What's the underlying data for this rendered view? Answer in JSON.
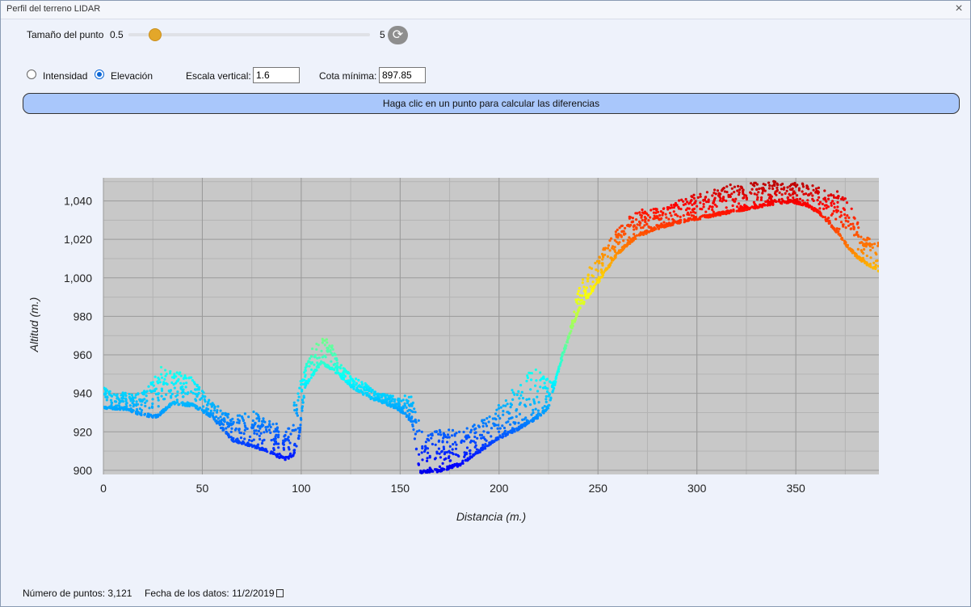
{
  "window": {
    "title": "Perfil del terreno LIDAR",
    "close_glyph": "×"
  },
  "controls": {
    "point_size_label": "Tamaño del punto",
    "slider_min": "0.5",
    "slider_max": "5",
    "slider_value": 1,
    "refresh_icon": "refresh-icon",
    "mode_intensity": "Intensidad",
    "mode_elevation": "Elevación",
    "selected_mode": "Elevación",
    "vertical_scale_label": "Escala vertical:",
    "vertical_scale_value": "1.6",
    "min_elevation_label": "Cota mínima:",
    "min_elevation_value": "897.85"
  },
  "banner": {
    "text": "Haga clic en un punto para calcular las diferencias"
  },
  "chart_data": {
    "type": "scatter",
    "xlabel": "Distancia (m.)",
    "ylabel": "Altitud (m.)",
    "xlim": [
      0,
      392
    ],
    "ylim": [
      897.85,
      1052
    ],
    "x_ticks": [
      0,
      50,
      100,
      150,
      200,
      250,
      300,
      350
    ],
    "y_ticks": [
      900,
      920,
      940,
      960,
      980,
      1000,
      1020,
      1040
    ],
    "x_tick_labels": [
      "0",
      "50",
      "100",
      "150",
      "200",
      "250",
      "300",
      "350"
    ],
    "y_tick_labels": [
      "900",
      "920",
      "940",
      "960",
      "980",
      "1,000",
      "1,020",
      "1,040"
    ],
    "grid": true,
    "colormap": "jet (blue = low elevation, red = high elevation)",
    "plot_background": "#c8c8c8",
    "ground_profile": {
      "x": [
        0,
        10,
        20,
        27,
        35,
        45,
        55,
        65,
        75,
        85,
        92,
        96,
        99,
        102,
        110,
        118,
        125,
        135,
        145,
        152,
        156,
        160,
        170,
        180,
        190,
        200,
        210,
        220,
        225,
        232,
        240,
        250,
        260,
        270,
        280,
        290,
        300,
        310,
        320,
        330,
        340,
        348,
        355,
        362,
        370,
        375,
        380,
        385,
        392
      ],
      "y": [
        933,
        932,
        929,
        928,
        935,
        934,
        928,
        916,
        913,
        909,
        906,
        908,
        918,
        944,
        956,
        951,
        944,
        938,
        934,
        930,
        925,
        899,
        900,
        903,
        910,
        917,
        922,
        928,
        933,
        960,
        983,
        998,
        1013,
        1022,
        1026,
        1029,
        1031,
        1033,
        1035,
        1037,
        1039,
        1040,
        1038,
        1034,
        1025,
        1018,
        1012,
        1008,
        1004
      ]
    },
    "canopy_profile": {
      "x": [
        0,
        10,
        20,
        30,
        35,
        40,
        45,
        55,
        65,
        75,
        85,
        92,
        98,
        104,
        110,
        115,
        120,
        130,
        140,
        150,
        155,
        162,
        170,
        180,
        190,
        200,
        210,
        217,
        222,
        228,
        235,
        240,
        245,
        250,
        258,
        265,
        272,
        280,
        290,
        300,
        310,
        320,
        330,
        340,
        350,
        360,
        370,
        378,
        383,
        388,
        392
      ],
      "y": [
        943,
        940,
        941,
        955,
        950,
        952,
        948,
        935,
        927,
        931,
        926,
        919,
        940,
        962,
        969,
        966,
        955,
        946,
        940,
        937,
        940,
        918,
        922,
        920,
        925,
        935,
        944,
        953,
        950,
        945,
        968,
        994,
        1005,
        1010,
        1023,
        1031,
        1035,
        1036,
        1040,
        1044,
        1047,
        1048,
        1049,
        1050,
        1049,
        1048,
        1046,
        1038,
        1024,
        1020,
        1018
      ]
    },
    "point_count": 3121
  },
  "footer": {
    "points_label": "Número de puntos: 3,121",
    "date_label": "Fecha de los datos: 11/2/2019"
  }
}
